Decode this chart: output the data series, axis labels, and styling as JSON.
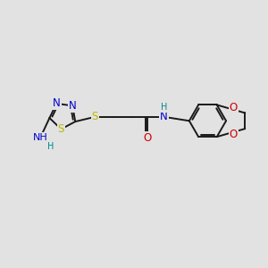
{
  "bg_color": "#e2e2e2",
  "bond_color": "#1a1a1a",
  "bond_width": 1.4,
  "colors": {
    "N": "#0000cc",
    "S": "#b8b800",
    "O": "#cc0000",
    "H": "#008888"
  },
  "fs": 8.5
}
